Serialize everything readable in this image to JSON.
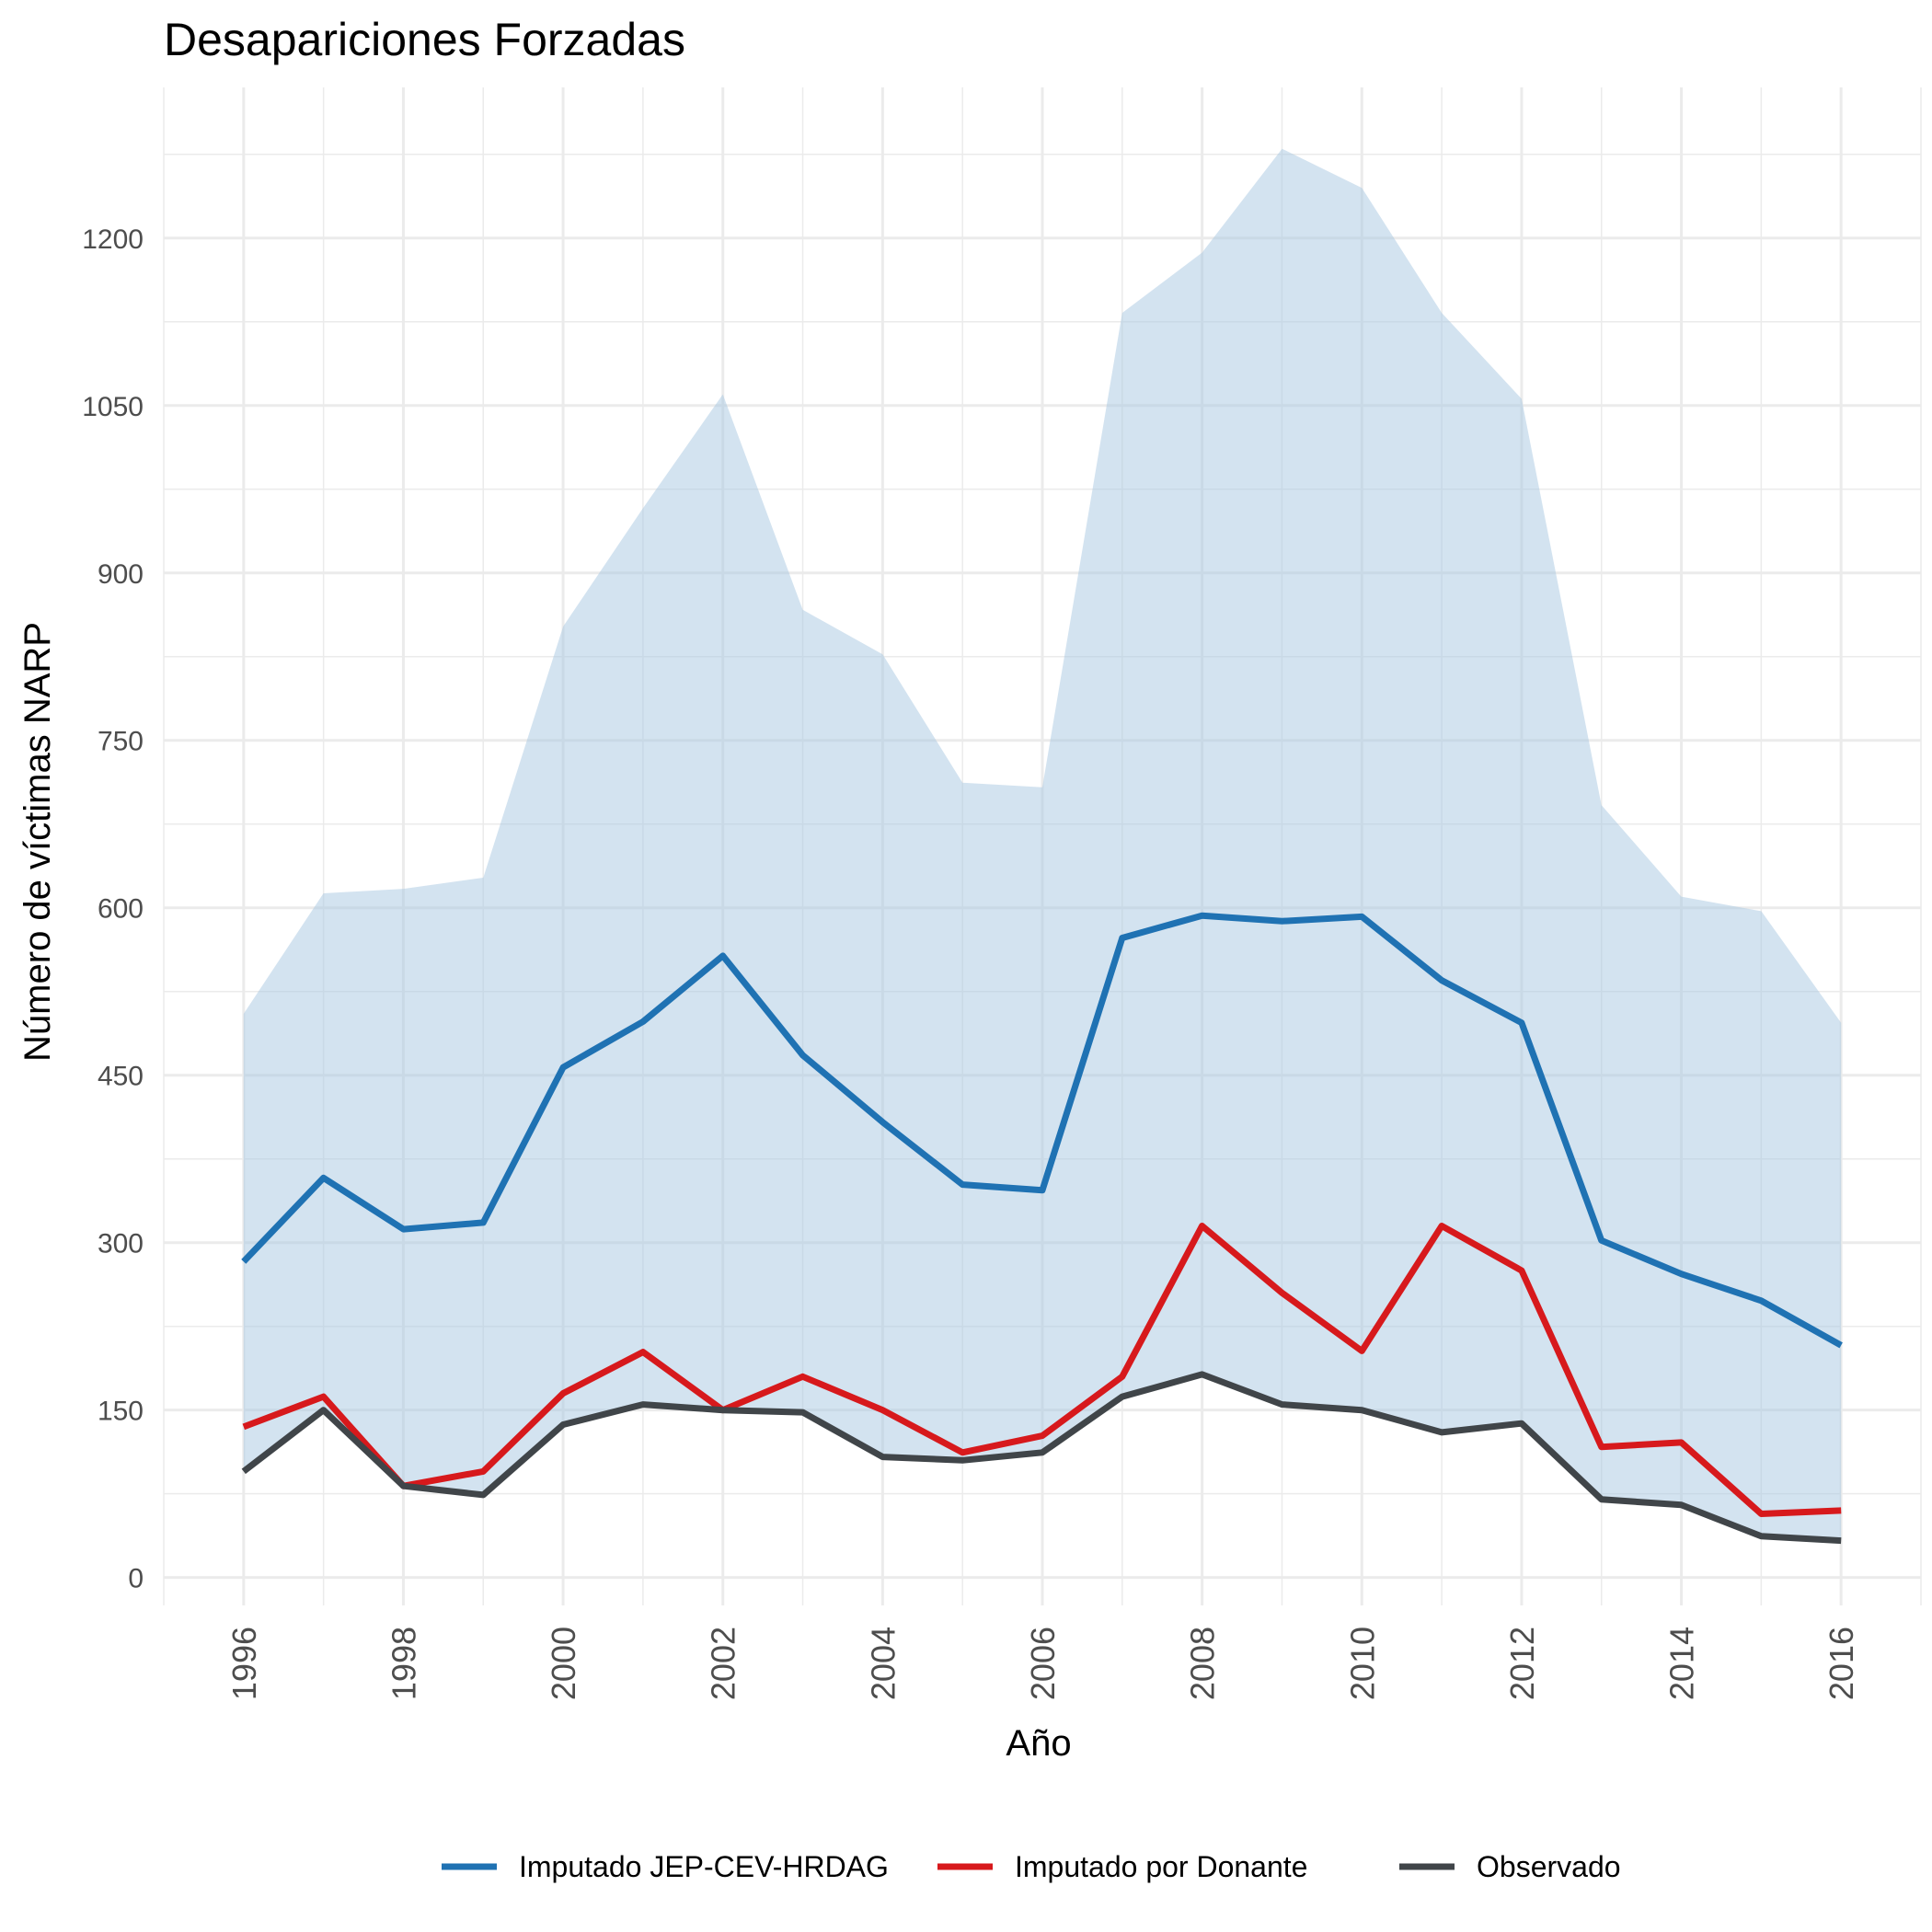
{
  "chart_data": {
    "type": "line",
    "title": "Desapariciones Forzadas",
    "xlabel": "Año",
    "ylabel": "Número de víctimas NARP",
    "x": [
      1996,
      1997,
      1998,
      1999,
      2000,
      2001,
      2002,
      2003,
      2004,
      2005,
      2006,
      2007,
      2008,
      2009,
      2010,
      2011,
      2012,
      2013,
      2014,
      2015,
      2016
    ],
    "x_ticks": [
      "1996",
      "1998",
      "2000",
      "2002",
      "2004",
      "2006",
      "2008",
      "2010",
      "2012",
      "2014",
      "2016"
    ],
    "xlim": [
      1995,
      2017
    ],
    "y_ticks": [
      "0",
      "150",
      "300",
      "450",
      "600",
      "750",
      "900",
      "1050",
      "1200"
    ],
    "ylim": [
      -25,
      1335
    ],
    "grid": true,
    "legend_position": "bottom",
    "band": {
      "color": "#a8c7e2",
      "lower": [
        95,
        150,
        82,
        74,
        137,
        155,
        150,
        148,
        108,
        105,
        112,
        162,
        182,
        155,
        150,
        130,
        138,
        70,
        65,
        37,
        33
      ],
      "upper": [
        505,
        613,
        617,
        627,
        852,
        958,
        1060,
        867,
        827,
        712,
        708,
        1133,
        1187,
        1280,
        1245,
        1133,
        1056,
        692,
        610,
        597,
        497
      ]
    },
    "series": [
      {
        "name": "Imputado JEP-CEV-HRDAG",
        "color": "#1f72b3",
        "values": [
          283,
          358,
          312,
          318,
          457,
          498,
          557,
          468,
          408,
          352,
          347,
          573,
          593,
          588,
          592,
          535,
          497,
          302,
          272,
          248,
          208
        ]
      },
      {
        "name": "Imputado por Donante",
        "color": "#d7191c",
        "values": [
          135,
          162,
          82,
          95,
          165,
          202,
          150,
          180,
          150,
          112,
          127,
          180,
          315,
          255,
          203,
          315,
          275,
          117,
          121,
          57,
          60
        ]
      },
      {
        "name": "Observado",
        "color": "#404549",
        "values": [
          95,
          150,
          82,
          74,
          137,
          155,
          150,
          148,
          108,
          105,
          112,
          162,
          182,
          155,
          150,
          130,
          138,
          70,
          65,
          37,
          33
        ]
      }
    ]
  }
}
